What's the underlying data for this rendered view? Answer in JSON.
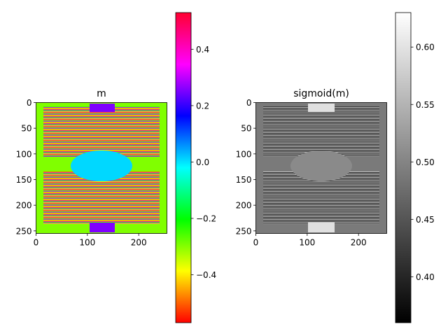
{
  "chart_data": [
    {
      "type": "heatmap",
      "title": "m",
      "colormap": "hsv",
      "xlim": [
        0,
        255
      ],
      "ylim": [
        255,
        0
      ],
      "x_ticks": [
        0,
        100,
        200
      ],
      "y_ticks": [
        0,
        50,
        100,
        150,
        200,
        250
      ],
      "colorbar": {
        "range": [
          -0.57,
          0.53
        ],
        "ticks": [
          -0.4,
          -0.2,
          0.0,
          0.2,
          0.4
        ],
        "tick_labels": [
          "−0.4",
          "−0.2",
          "0.0",
          "0.2",
          "0.4"
        ]
      }
    },
    {
      "type": "heatmap",
      "title": "sigmoid(m)",
      "colormap": "gray",
      "xlim": [
        0,
        255
      ],
      "ylim": [
        255,
        0
      ],
      "x_ticks": [
        0,
        100,
        200
      ],
      "y_ticks": [
        0,
        50,
        100,
        150,
        200,
        250
      ],
      "colorbar": {
        "range": [
          0.36,
          0.63
        ],
        "ticks": [
          0.4,
          0.45,
          0.5,
          0.55,
          0.6
        ],
        "tick_labels": [
          "0.40",
          "0.45",
          "0.50",
          "0.55",
          "0.60"
        ]
      }
    }
  ]
}
